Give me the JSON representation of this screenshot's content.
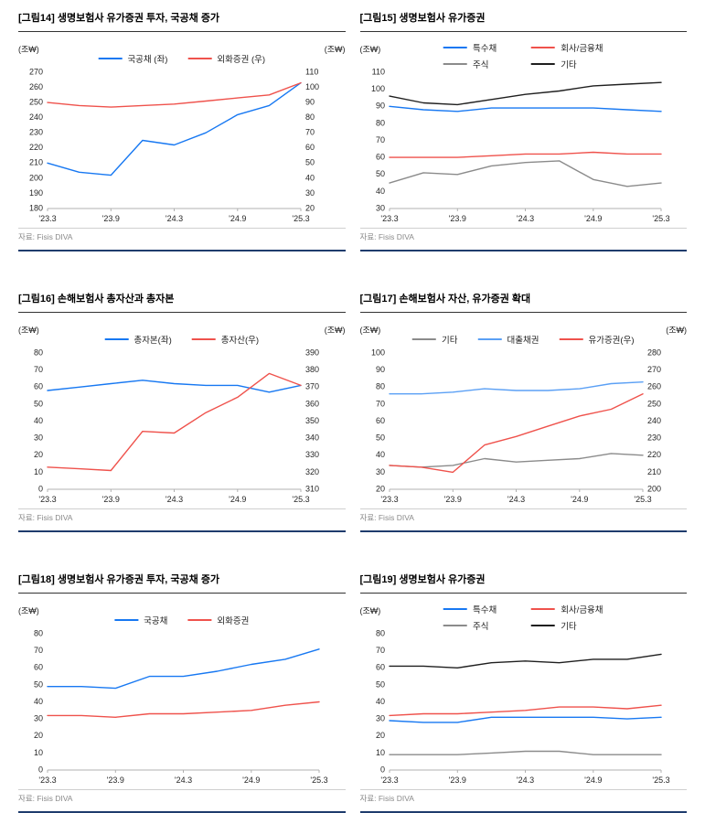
{
  "chart_data": [
    {
      "id": "fig14",
      "type": "line",
      "title": "[그림14] 생명보험사 유가증권 투자, 국공채 증가",
      "source": "자료: Fisis DIVA",
      "x_tick_labels": [
        "'23.3",
        "'23.9",
        "'24.3",
        "'24.9",
        "'25.3"
      ],
      "left_axis": {
        "unit": "(조₩)",
        "min": 180,
        "max": 270,
        "step": 10
      },
      "right_axis": {
        "unit": "(조₩)",
        "min": 20,
        "max": 110,
        "step": 10
      },
      "legend_columns": 1,
      "grid": false,
      "legend_position": "top-center",
      "series": [
        {
          "name": "국공채 (좌)",
          "color": "#1778f2",
          "axis": "left",
          "values": [
            210,
            204,
            202,
            225,
            222,
            230,
            242,
            248,
            263
          ]
        },
        {
          "name": "외화증권 (우)",
          "color": "#ef524c",
          "axis": "right",
          "values": [
            90,
            88,
            87,
            88,
            89,
            91,
            93,
            95,
            103
          ]
        }
      ]
    },
    {
      "id": "fig15",
      "type": "line",
      "title": "[그림15] 생명보험사 유가증권",
      "source": "자료: Fisis DIVA",
      "x_tick_labels": [
        "'23.3",
        "'23.9",
        "'24.3",
        "'24.9",
        "'25.3"
      ],
      "left_axis": {
        "unit": "(조₩)",
        "min": 30,
        "max": 110,
        "step": 10
      },
      "legend_columns": 2,
      "grid": false,
      "legend_position": "top-center",
      "series": [
        {
          "name": "특수채",
          "color": "#1778f2",
          "axis": "left",
          "values": [
            90,
            88,
            87,
            89,
            89,
            89,
            89,
            88,
            87
          ]
        },
        {
          "name": "회사/금융채",
          "color": "#ef524c",
          "axis": "left",
          "values": [
            60,
            60,
            60,
            61,
            62,
            62,
            63,
            62,
            62
          ]
        },
        {
          "name": "주식",
          "color": "#8b8b8b",
          "axis": "left",
          "values": [
            45,
            51,
            50,
            55,
            57,
            58,
            47,
            43,
            45
          ]
        },
        {
          "name": "기타",
          "color": "#1f1f1f",
          "axis": "left",
          "values": [
            96,
            92,
            91,
            94,
            97,
            99,
            102,
            103,
            104
          ]
        }
      ]
    },
    {
      "id": "fig16",
      "type": "line",
      "title": "[그림16] 손해보험사 총자산과 총자본",
      "source": "자료: Fisis DIVA",
      "x_tick_labels": [
        "'23.3",
        "'23.9",
        "'24.3",
        "'24.9",
        "'25.3"
      ],
      "left_axis": {
        "unit": "(조₩)",
        "min": 0,
        "max": 80,
        "step": 10
      },
      "right_axis": {
        "unit": "(조₩)",
        "min": 310,
        "max": 390,
        "step": 10
      },
      "legend_columns": 1,
      "grid": false,
      "legend_position": "top-center",
      "series": [
        {
          "name": "총자본(좌)",
          "color": "#1778f2",
          "axis": "left",
          "values": [
            58,
            60,
            62,
            64,
            62,
            61,
            61,
            57,
            61
          ]
        },
        {
          "name": "총자산(우)",
          "color": "#ef524c",
          "axis": "right",
          "values": [
            323,
            322,
            321,
            344,
            343,
            355,
            364,
            378,
            371
          ]
        }
      ]
    },
    {
      "id": "fig17",
      "type": "line",
      "title": "[그림17] 손해보험사 자산, 유가증권 확대",
      "source": "자료: Fisis DIVA",
      "x_tick_labels": [
        "'23.3",
        "'23.9",
        "'24.3",
        "'24.9",
        "'25.3"
      ],
      "left_axis": {
        "unit": "(조₩)",
        "min": 20,
        "max": 100,
        "step": 10
      },
      "right_axis": {
        "unit": "(조₩)",
        "min": 200,
        "max": 280,
        "step": 10
      },
      "legend_columns": 1,
      "grid": false,
      "legend_position": "top-center",
      "series": [
        {
          "name": "기타",
          "color": "#8b8b8b",
          "axis": "left",
          "values": [
            34,
            33,
            34,
            38,
            36,
            37,
            38,
            41,
            40
          ]
        },
        {
          "name": "대출채권",
          "color": "#5ba0f5",
          "axis": "left",
          "values": [
            76,
            76,
            77,
            79,
            78,
            78,
            79,
            82,
            83
          ]
        },
        {
          "name": "유가증권(우)",
          "color": "#ef524c",
          "axis": "right",
          "values": [
            214,
            213,
            210,
            226,
            231,
            237,
            243,
            247,
            256
          ]
        }
      ]
    },
    {
      "id": "fig18",
      "type": "line",
      "title": "[그림18] 생명보험사 유가증권 투자, 국공채 증가",
      "source": "자료: Fisis DIVA",
      "x_tick_labels": [
        "'23.3",
        "'23.9",
        "'24.3",
        "'24.9",
        "'25.3"
      ],
      "left_axis": {
        "unit": "(조₩)",
        "min": 0,
        "max": 80,
        "step": 10
      },
      "legend_columns": 1,
      "grid": false,
      "legend_position": "top-center",
      "series": [
        {
          "name": "국공채",
          "color": "#1778f2",
          "axis": "left",
          "values": [
            49,
            49,
            48,
            55,
            55,
            58,
            62,
            65,
            71
          ]
        },
        {
          "name": "외화증권",
          "color": "#ef524c",
          "axis": "left",
          "values": [
            32,
            32,
            31,
            33,
            33,
            34,
            35,
            38,
            40
          ]
        }
      ]
    },
    {
      "id": "fig19",
      "type": "line",
      "title": "[그림19] 생명보험사 유가증권",
      "source": "자료: Fisis DIVA",
      "x_tick_labels": [
        "'23.3",
        "'23.9",
        "'24.3",
        "'24.9",
        "'25.3"
      ],
      "left_axis": {
        "unit": "(조₩)",
        "min": 0,
        "max": 80,
        "step": 10
      },
      "legend_columns": 2,
      "grid": false,
      "legend_position": "top-center",
      "series": [
        {
          "name": "특수채",
          "color": "#1778f2",
          "axis": "left",
          "values": [
            29,
            28,
            28,
            31,
            31,
            31,
            31,
            30,
            31
          ]
        },
        {
          "name": "회사/금융채",
          "color": "#ef524c",
          "axis": "left",
          "values": [
            32,
            33,
            33,
            34,
            35,
            37,
            37,
            36,
            38
          ]
        },
        {
          "name": "주식",
          "color": "#8b8b8b",
          "axis": "left",
          "values": [
            9,
            9,
            9,
            10,
            11,
            11,
            9,
            9,
            9
          ]
        },
        {
          "name": "기타",
          "color": "#1f1f1f",
          "axis": "left",
          "values": [
            61,
            61,
            60,
            63,
            64,
            63,
            65,
            65,
            68
          ]
        }
      ]
    }
  ]
}
